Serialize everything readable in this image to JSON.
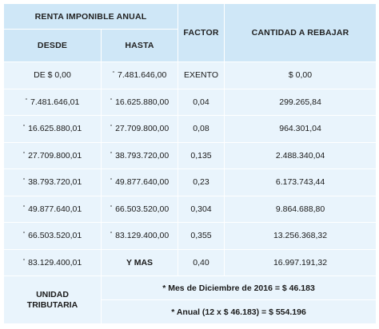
{
  "headers": {
    "renta": "RENTA IMPONIBLE ANUAL",
    "desde": "DESDE",
    "hasta": "HASTA",
    "factor": "FACTOR",
    "cantidad": "CANTIDAD A REBAJAR"
  },
  "rows": [
    {
      "desde_prefix": "",
      "desde": "DE $ 0,00",
      "hasta_prefix": "“",
      "hasta": "7.481.646,00",
      "factor": "EXENTO",
      "cantidad": "$ 0,00"
    },
    {
      "desde_prefix": "“",
      "desde": "7.481.646,01",
      "hasta_prefix": "“",
      "hasta": "16.625.880,00",
      "factor": "0,04",
      "cantidad": "299.265,84"
    },
    {
      "desde_prefix": "“",
      "desde": "16.625.880,01",
      "hasta_prefix": "“",
      "hasta": "27.709.800,00",
      "factor": "0,08",
      "cantidad": "964.301,04"
    },
    {
      "desde_prefix": "“",
      "desde": "27.709.800,01",
      "hasta_prefix": "“",
      "hasta": "38.793.720,00",
      "factor": "0,135",
      "cantidad": "2.488.340,04"
    },
    {
      "desde_prefix": "“",
      "desde": "38.793.720,01",
      "hasta_prefix": "“",
      "hasta": "49.877.640,00",
      "factor": "0,23",
      "cantidad": "6.173.743,44"
    },
    {
      "desde_prefix": "“",
      "desde": "49.877.640,01",
      "hasta_prefix": "“",
      "hasta": "66.503.520,00",
      "factor": "0,304",
      "cantidad": "9.864.688,80"
    },
    {
      "desde_prefix": "“",
      "desde": "66.503.520,01",
      "hasta_prefix": "“",
      "hasta": "83.129.400,00",
      "factor": "0,355",
      "cantidad": "13.256.368,32"
    },
    {
      "desde_prefix": "“",
      "desde": "83.129.400,01",
      "hasta_prefix": "",
      "hasta": "Y MAS",
      "factor": "0,40",
      "cantidad": "16.997.191,32"
    }
  ],
  "footer": {
    "label_line1": "UNIDAD",
    "label_line2": "TRIBUTARIA",
    "monthly": "* Mes de Diciembre de 2016 = $ 46.183",
    "annual": "* Anual (12 x $ 46.183) = $ 554.196"
  },
  "colors": {
    "header_bg": "#cfe7f7",
    "body_bg": "#e9f4fc"
  }
}
